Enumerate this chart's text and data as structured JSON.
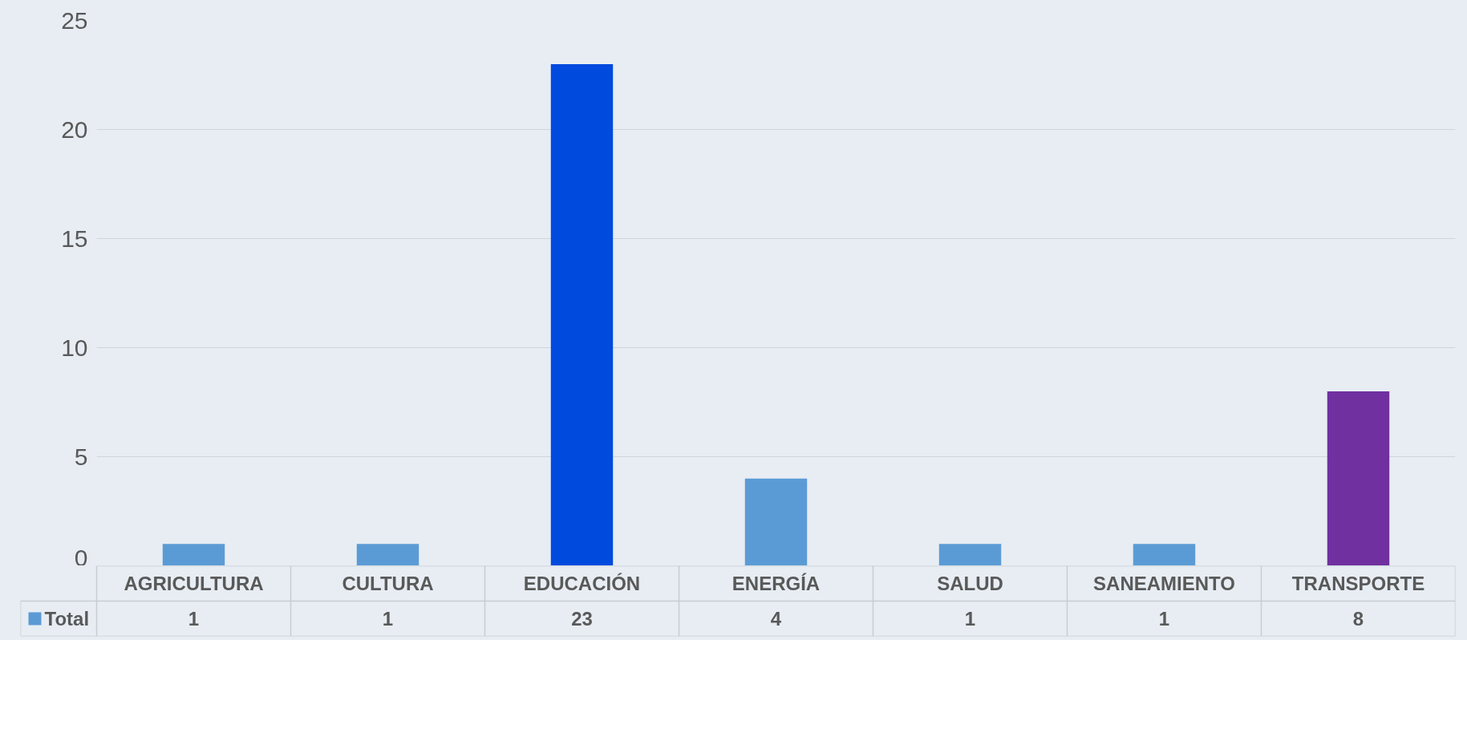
{
  "chart_data": {
    "type": "bar",
    "categories": [
      "AGRICULTURA",
      "CULTURA",
      "EDUCACIÓN",
      "ENERGÍA",
      "SALUD",
      "SANEAMIENTO",
      "TRANSPORTE"
    ],
    "series": [
      {
        "name": "Total",
        "color": "#5b9bd5",
        "colors": [
          "#5b9bd5",
          "#5b9bd5",
          "#004ade",
          "#5b9bd5",
          "#5b9bd5",
          "#5b9bd5",
          "#7030a0"
        ],
        "values": [
          1,
          1,
          23,
          4,
          1,
          1,
          8
        ]
      }
    ],
    "ylim": [
      0,
      25
    ],
    "yticks": [
      0,
      5,
      10,
      15,
      20,
      25
    ],
    "grid": "y",
    "legend": "bottom",
    "data_labels": true
  }
}
